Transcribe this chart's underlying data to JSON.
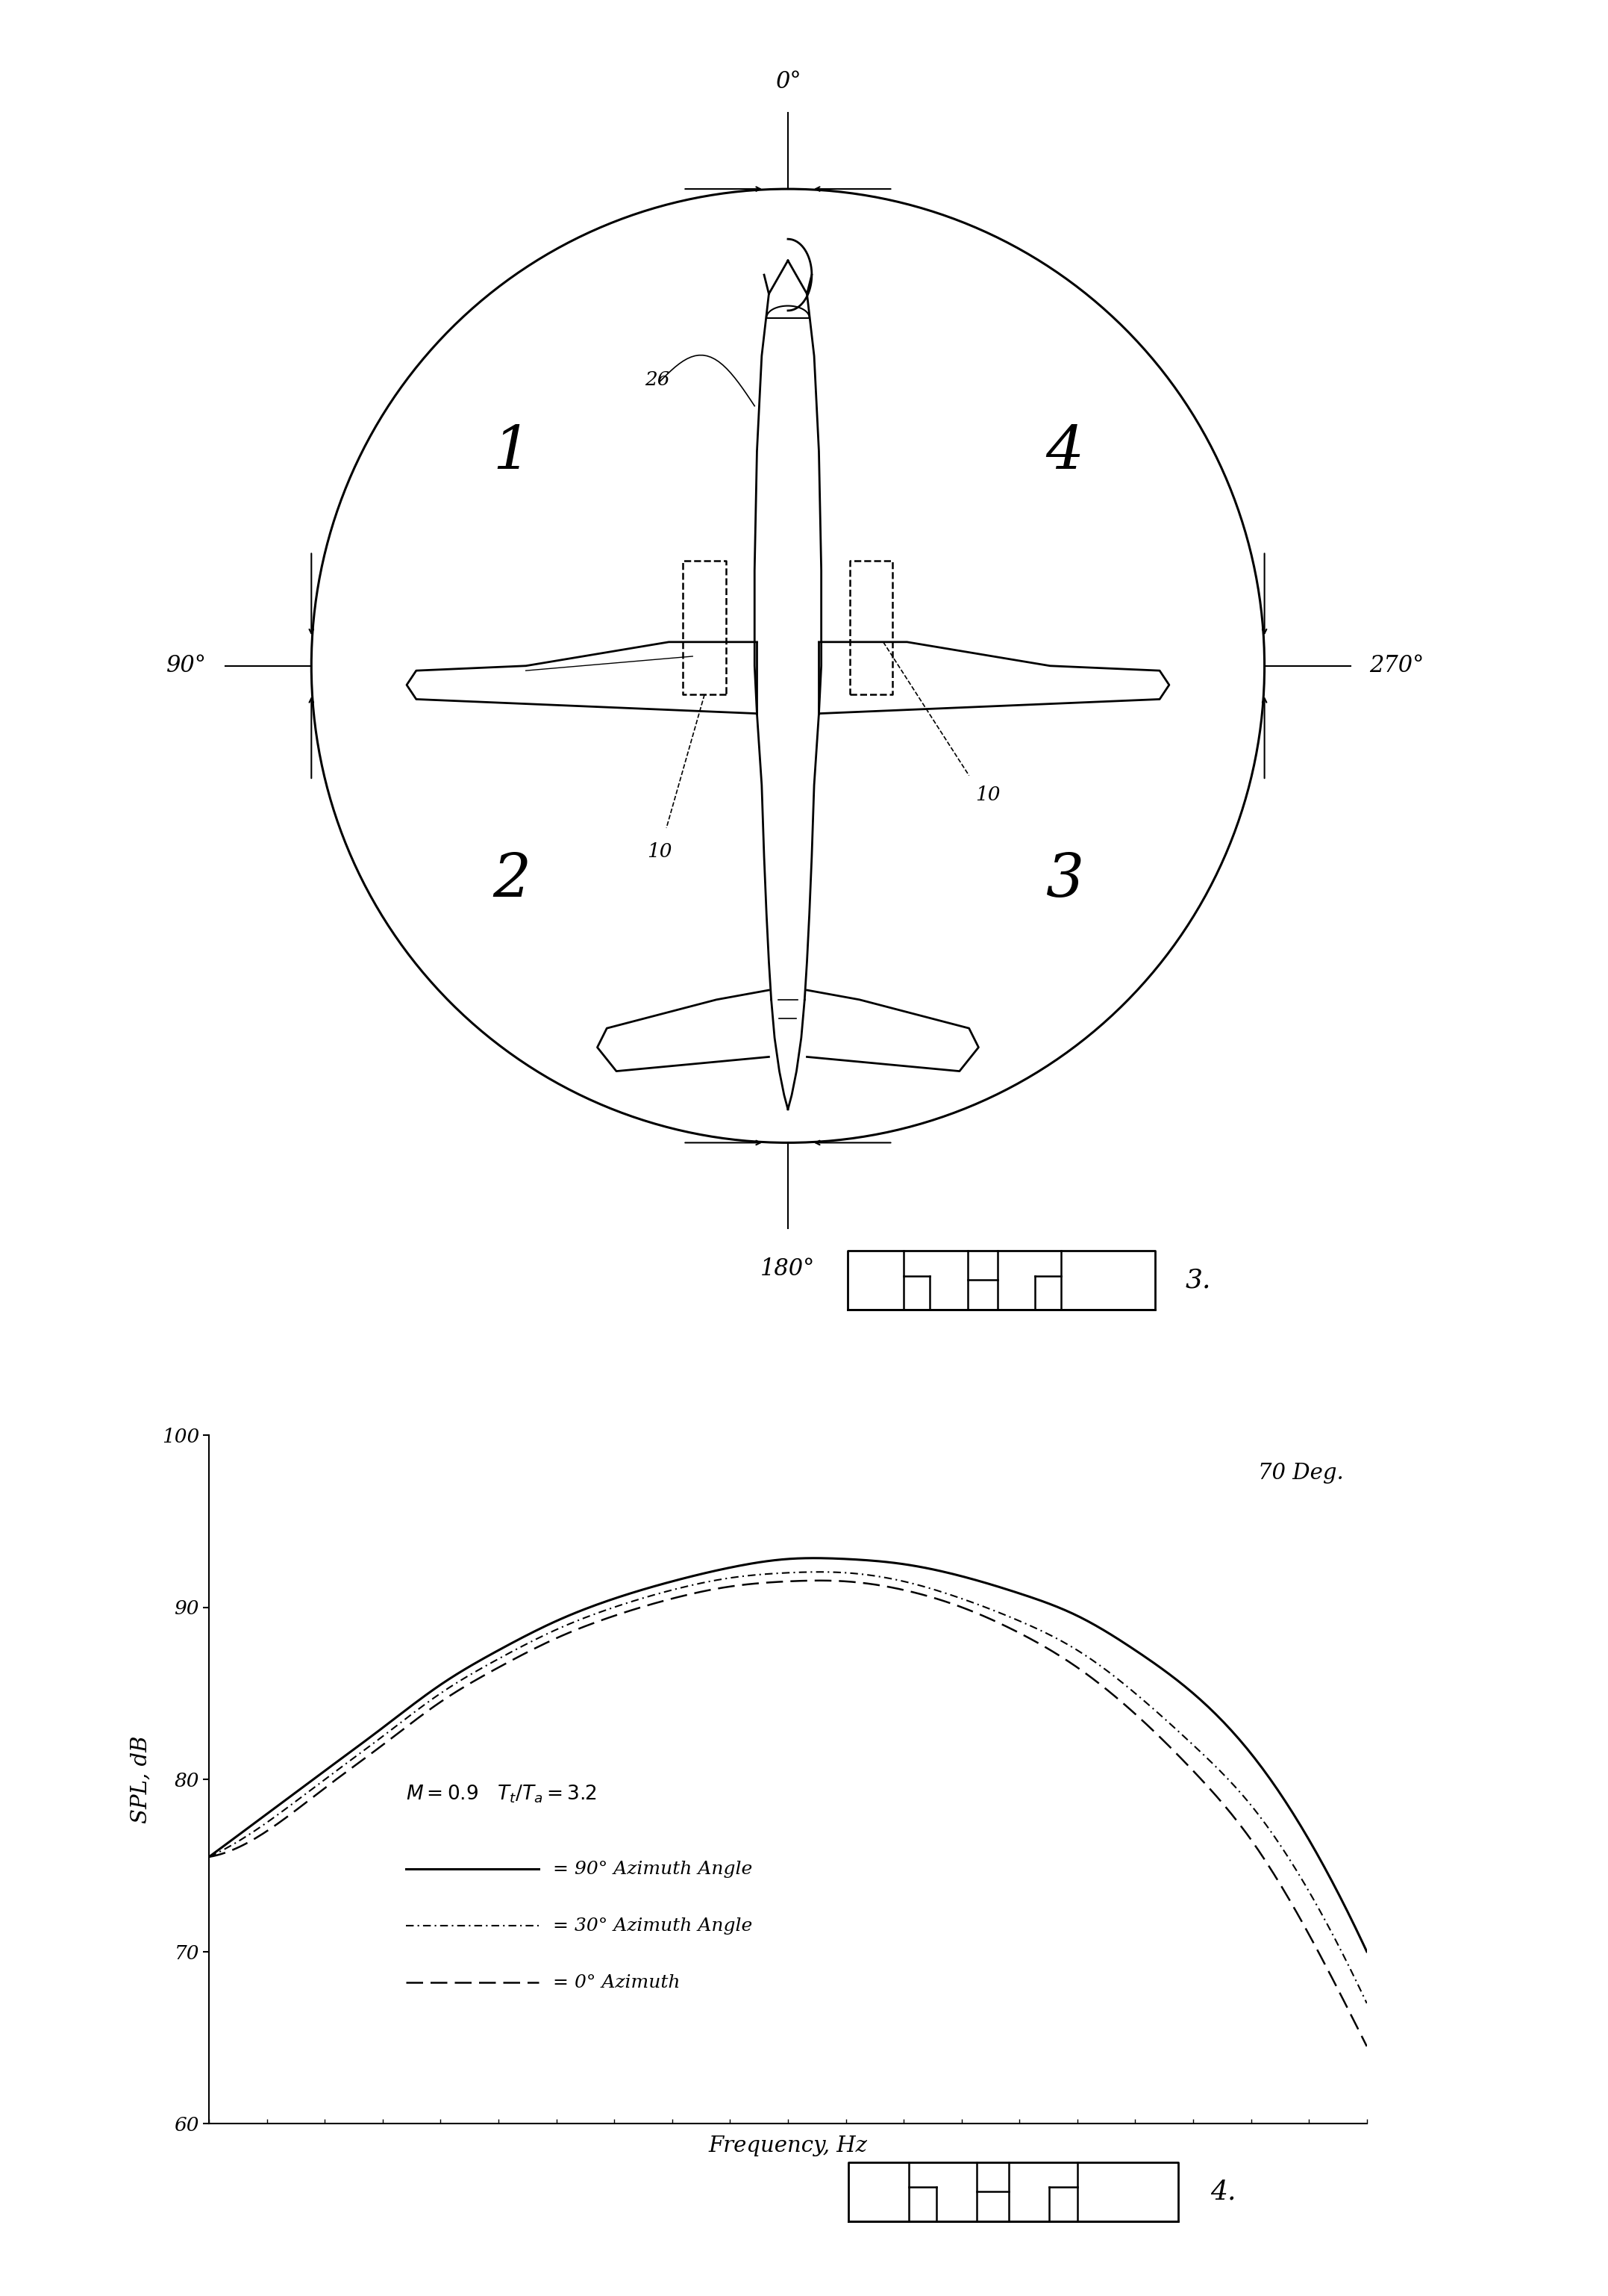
{
  "background_color": "#ffffff",
  "fig_width": 21.55,
  "fig_height": 30.75,
  "curve_x": [
    0.0,
    0.05,
    0.1,
    0.15,
    0.2,
    0.25,
    0.3,
    0.35,
    0.4,
    0.45,
    0.5,
    0.55,
    0.6,
    0.65,
    0.7,
    0.75,
    0.8,
    0.85,
    0.9,
    0.95,
    1.0
  ],
  "curve_90_y": [
    75.5,
    78.0,
    80.5,
    83.0,
    85.5,
    87.5,
    89.2,
    90.5,
    91.5,
    92.3,
    92.8,
    92.8,
    92.5,
    91.8,
    90.8,
    89.5,
    87.5,
    85.0,
    81.5,
    76.5,
    70.0
  ],
  "curve_30_y": [
    75.5,
    77.5,
    80.0,
    82.5,
    85.0,
    87.0,
    88.7,
    90.0,
    91.0,
    91.7,
    92.0,
    92.0,
    91.5,
    90.5,
    89.2,
    87.5,
    85.0,
    82.0,
    78.5,
    73.5,
    67.0
  ],
  "curve_0_y": [
    75.5,
    77.0,
    79.5,
    82.0,
    84.5,
    86.5,
    88.2,
    89.5,
    90.5,
    91.2,
    91.5,
    91.5,
    91.0,
    90.0,
    88.5,
    86.5,
    83.8,
    80.5,
    76.5,
    71.0,
    64.5
  ],
  "ylim": [
    60,
    100
  ],
  "yticks": [
    60,
    70,
    80,
    90,
    100
  ],
  "ylabel": "SPL, dB",
  "xlabel": "Frequency, Hz",
  "annotation": "70 Deg.",
  "line_90_label": "= 90° Azimuth Angle",
  "line_30_label": "= 30° Azimuth Angle",
  "line_0_label": "= 0° Azimuth"
}
